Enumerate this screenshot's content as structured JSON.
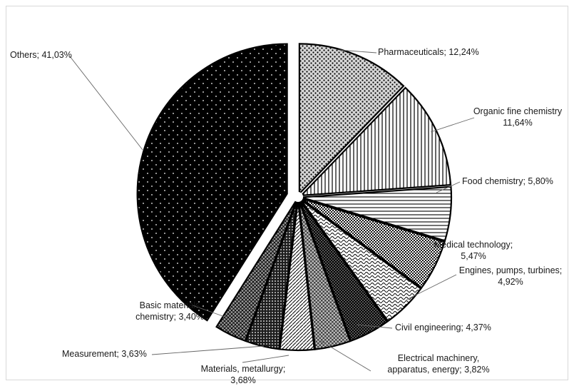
{
  "chart_data": {
    "type": "pie",
    "title": "",
    "series": [
      {
        "name": "Pharmaceuticals",
        "value": 12.24,
        "label_lines": [
          "Pharmaceuticals; 12,24%"
        ],
        "pattern": "diamond-dots"
      },
      {
        "name": "Organic fine chemistry",
        "value": 11.64,
        "label_lines": [
          "Organic fine chemistry",
          "11,64%"
        ],
        "pattern": "vertical-lines"
      },
      {
        "name": "Food chemistry",
        "value": 5.8,
        "label_lines": [
          "Food chemistry; 5,80%"
        ],
        "pattern": "horizontal-lines"
      },
      {
        "name": "Medical technology",
        "value": 5.47,
        "label_lines": [
          "Medical technology;",
          "5,47%"
        ],
        "pattern": "dense-dots"
      },
      {
        "name": "Engines, pumps, turbines",
        "value": 4.92,
        "label_lines": [
          "Engines, pumps, turbines;",
          "4,92%"
        ],
        "pattern": "waves"
      },
      {
        "name": "Civil engineering",
        "value": 4.37,
        "label_lines": [
          "Civil engineering; 4,37%"
        ],
        "pattern": "dark-checker"
      },
      {
        "name": "Electrical machinery, apparatus, energy",
        "value": 3.82,
        "label_lines": [
          "Electrical machinery,",
          "apparatus, energy; 3,82%"
        ],
        "pattern": "light-checker"
      },
      {
        "name": "Materials, metallurgy",
        "value": 3.68,
        "label_lines": [
          "Materials, metallurgy;",
          "3,68%"
        ],
        "pattern": "diagonal-lines"
      },
      {
        "name": "Measurement",
        "value": 3.63,
        "label_lines": [
          "Measurement; 3,63%"
        ],
        "pattern": "dark-grid"
      },
      {
        "name": "Basic materials chemistry",
        "value": 3.4,
        "label_lines": [
          "Basic materials",
          "chemistry; 3,40%"
        ],
        "pattern": "crosshatch"
      },
      {
        "name": "Others",
        "value": 41.03,
        "label_lines": [
          "Others; 41,03%"
        ],
        "pattern": "black-dots",
        "exploded": true
      }
    ],
    "legend": "none",
    "start_angle_deg": 0,
    "direction": "clockwise"
  },
  "colors": {
    "stroke": "#000000",
    "fill_background": "#ffffff",
    "leader_line": "#666666",
    "text": "#1a1a1a"
  }
}
